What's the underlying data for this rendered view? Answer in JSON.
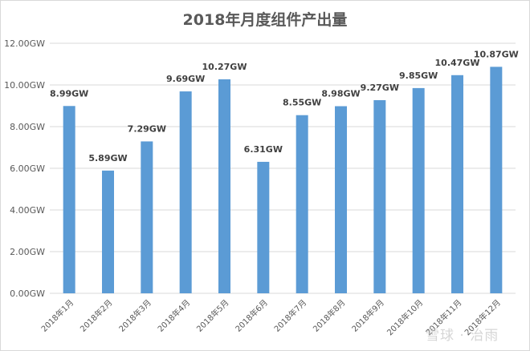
{
  "chart_data": {
    "type": "bar",
    "title": "2018年月度组件产出量",
    "categories": [
      "2018年1月",
      "2018年2月",
      "2018年3月",
      "2018年4月",
      "2018年5月",
      "2018年6月",
      "2018年7月",
      "2018年8月",
      "2018年9月",
      "2018年10月",
      "2018年11月",
      "2018年12月"
    ],
    "values": [
      8.99,
      5.89,
      7.29,
      9.69,
      10.27,
      6.31,
      8.55,
      8.98,
      9.27,
      9.85,
      10.47,
      10.87
    ],
    "data_labels": [
      "8.99GW",
      "5.89GW",
      "7.29GW",
      "9.69GW",
      "10.27GW",
      "6.31GW",
      "8.55GW",
      "8.98GW",
      "9.27GW",
      "9.85GW",
      "10.47GW",
      "10.87GW"
    ],
    "y_ticks": [
      0,
      2,
      4,
      6,
      8,
      10,
      12
    ],
    "y_tick_labels": [
      "0.00GW",
      "2.00GW",
      "4.00GW",
      "6.00GW",
      "8.00GW",
      "10.00GW",
      "12.00GW"
    ],
    "ylim": [
      0,
      12
    ],
    "xlabel": "",
    "ylabel": "",
    "grid": true,
    "bar_color": "#5b9bd5",
    "grid_color": "#d9d9d9"
  },
  "watermark": "雪球 · 治雨"
}
